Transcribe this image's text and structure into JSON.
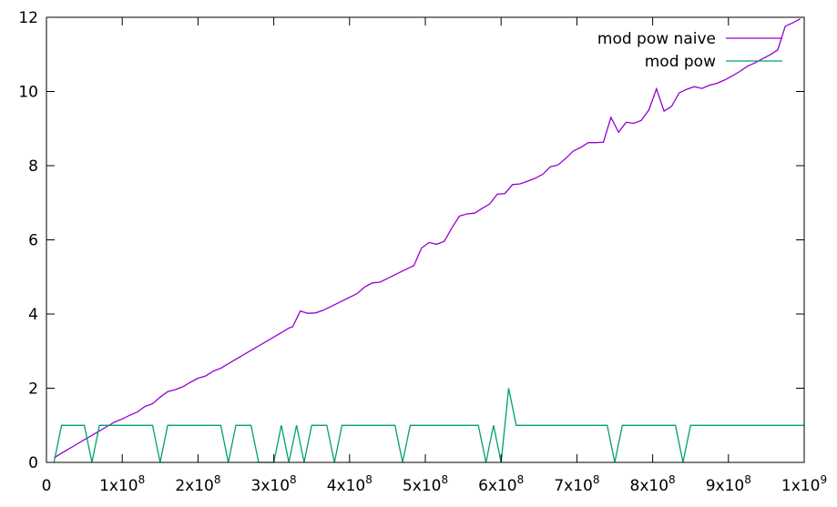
{
  "chart_data": {
    "type": "line",
    "title": "",
    "xlabel": "",
    "ylabel": "",
    "xlim": [
      0,
      1000000000
    ],
    "ylim": [
      0,
      12
    ],
    "grid": false,
    "legend_position": "top-right",
    "x_ticks": [
      {
        "value": 0,
        "mant": "0",
        "exp": ""
      },
      {
        "value": 100000000,
        "mant": "1x10",
        "exp": "8"
      },
      {
        "value": 200000000,
        "mant": "2x10",
        "exp": "8"
      },
      {
        "value": 300000000,
        "mant": "3x10",
        "exp": "8"
      },
      {
        "value": 400000000,
        "mant": "4x10",
        "exp": "8"
      },
      {
        "value": 500000000,
        "mant": "5x10",
        "exp": "8"
      },
      {
        "value": 600000000,
        "mant": "6x10",
        "exp": "8"
      },
      {
        "value": 700000000,
        "mant": "7x10",
        "exp": "8"
      },
      {
        "value": 800000000,
        "mant": "8x10",
        "exp": "8"
      },
      {
        "value": 900000000,
        "mant": "9x10",
        "exp": "8"
      },
      {
        "value": 1000000000,
        "mant": "1x10",
        "exp": "9"
      }
    ],
    "y_ticks": [
      {
        "value": 0,
        "label": "0"
      },
      {
        "value": 2,
        "label": "2"
      },
      {
        "value": 4,
        "label": "4"
      },
      {
        "value": 6,
        "label": "6"
      },
      {
        "value": 8,
        "label": "8"
      },
      {
        "value": 10,
        "label": "10"
      },
      {
        "value": 12,
        "label": "12"
      }
    ],
    "series": [
      {
        "name": "mod pow naive",
        "color": "#9400d3",
        "points": [
          [
            10000000,
            0.12
          ],
          [
            20000000,
            0.25
          ],
          [
            30000000,
            0.37
          ],
          [
            40000000,
            0.49
          ],
          [
            50000000,
            0.61
          ],
          [
            60000000,
            0.73
          ],
          [
            70000000,
            0.85
          ],
          [
            80000000,
            0.97
          ],
          [
            90000000,
            1.09
          ],
          [
            100000000,
            1.17
          ],
          [
            110000000,
            1.27
          ],
          [
            120000000,
            1.36
          ],
          [
            130000000,
            1.51
          ],
          [
            140000000,
            1.58
          ],
          [
            150000000,
            1.76
          ],
          [
            160000000,
            1.91
          ],
          [
            170000000,
            1.96
          ],
          [
            180000000,
            2.04
          ],
          [
            190000000,
            2.16
          ],
          [
            200000000,
            2.27
          ],
          [
            210000000,
            2.33
          ],
          [
            220000000,
            2.46
          ],
          [
            230000000,
            2.54
          ],
          [
            240000000,
            2.66
          ],
          [
            250000000,
            2.78
          ],
          [
            260000000,
            2.9
          ],
          [
            270000000,
            3.02
          ],
          [
            280000000,
            3.14
          ],
          [
            290000000,
            3.26
          ],
          [
            300000000,
            3.38
          ],
          [
            310000000,
            3.5
          ],
          [
            320000000,
            3.62
          ],
          [
            325000000,
            3.66
          ],
          [
            335000000,
            4.08
          ],
          [
            345000000,
            4.02
          ],
          [
            355000000,
            4.03
          ],
          [
            365000000,
            4.1
          ],
          [
            375000000,
            4.2
          ],
          [
            385000000,
            4.3
          ],
          [
            395000000,
            4.4
          ],
          [
            405000000,
            4.5
          ],
          [
            410000000,
            4.55
          ],
          [
            420000000,
            4.73
          ],
          [
            430000000,
            4.84
          ],
          [
            440000000,
            4.86
          ],
          [
            450000000,
            4.96
          ],
          [
            460000000,
            5.06
          ],
          [
            470000000,
            5.16
          ],
          [
            480000000,
            5.26
          ],
          [
            485000000,
            5.31
          ],
          [
            495000000,
            5.78
          ],
          [
            505000000,
            5.93
          ],
          [
            515000000,
            5.88
          ],
          [
            525000000,
            5.96
          ],
          [
            535000000,
            6.32
          ],
          [
            545000000,
            6.64
          ],
          [
            555000000,
            6.7
          ],
          [
            565000000,
            6.72
          ],
          [
            575000000,
            6.85
          ],
          [
            585000000,
            6.97
          ],
          [
            595000000,
            7.23
          ],
          [
            605000000,
            7.25
          ],
          [
            615000000,
            7.49
          ],
          [
            625000000,
            7.51
          ],
          [
            635000000,
            7.58
          ],
          [
            645000000,
            7.66
          ],
          [
            655000000,
            7.77
          ],
          [
            665000000,
            7.97
          ],
          [
            675000000,
            8.02
          ],
          [
            685000000,
            8.19
          ],
          [
            695000000,
            8.39
          ],
          [
            705000000,
            8.49
          ],
          [
            715000000,
            8.62
          ],
          [
            725000000,
            8.62
          ],
          [
            735000000,
            8.63
          ],
          [
            745000000,
            9.3
          ],
          [
            755000000,
            8.9
          ],
          [
            765000000,
            9.17
          ],
          [
            775000000,
            9.14
          ],
          [
            785000000,
            9.22
          ],
          [
            795000000,
            9.5
          ],
          [
            805000000,
            10.07
          ],
          [
            815000000,
            9.47
          ],
          [
            825000000,
            9.6
          ],
          [
            835000000,
            9.96
          ],
          [
            845000000,
            10.06
          ],
          [
            855000000,
            10.13
          ],
          [
            865000000,
            10.08
          ],
          [
            875000000,
            10.17
          ],
          [
            885000000,
            10.22
          ],
          [
            895000000,
            10.31
          ],
          [
            905000000,
            10.42
          ],
          [
            915000000,
            10.54
          ],
          [
            925000000,
            10.68
          ],
          [
            935000000,
            10.77
          ],
          [
            945000000,
            10.88
          ],
          [
            955000000,
            10.99
          ],
          [
            965000000,
            11.12
          ],
          [
            975000000,
            11.76
          ],
          [
            985000000,
            11.85
          ],
          [
            995000000,
            11.96
          ]
        ]
      },
      {
        "name": "mod pow",
        "color": "#009e73",
        "points": [
          [
            10000000,
            0
          ],
          [
            20000000,
            1
          ],
          [
            50000000,
            1
          ],
          [
            60000000,
            0
          ],
          [
            70000000,
            1
          ],
          [
            140000000,
            1
          ],
          [
            150000000,
            0
          ],
          [
            160000000,
            1
          ],
          [
            230000000,
            1
          ],
          [
            240000000,
            0
          ],
          [
            250000000,
            1
          ],
          [
            270000000,
            1
          ],
          [
            280000000,
            0
          ],
          [
            300000000,
            0
          ],
          [
            310000000,
            1
          ],
          [
            320000000,
            0
          ],
          [
            330000000,
            1
          ],
          [
            340000000,
            0
          ],
          [
            350000000,
            1
          ],
          [
            370000000,
            1
          ],
          [
            380000000,
            0
          ],
          [
            390000000,
            1
          ],
          [
            460000000,
            1
          ],
          [
            470000000,
            0
          ],
          [
            480000000,
            1
          ],
          [
            570000000,
            1
          ],
          [
            580000000,
            0
          ],
          [
            590000000,
            1
          ],
          [
            600000000,
            0
          ],
          [
            610000000,
            2
          ],
          [
            620000000,
            1
          ],
          [
            740000000,
            1
          ],
          [
            750000000,
            0
          ],
          [
            760000000,
            1
          ],
          [
            830000000,
            1
          ],
          [
            840000000,
            0
          ],
          [
            850000000,
            1
          ],
          [
            1000000000,
            1
          ]
        ]
      }
    ]
  }
}
